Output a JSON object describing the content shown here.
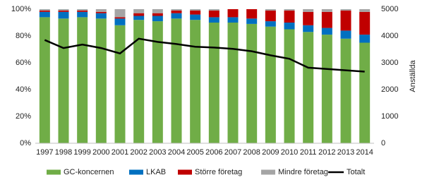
{
  "chart_data": {
    "type": "stacked-bar-line",
    "categories": [
      "1997",
      "1998",
      "1999",
      "2000",
      "2001",
      "2002",
      "2003",
      "2004",
      "2005",
      "2006",
      "2007",
      "2008",
      "2009",
      "2010",
      "2011",
      "2012",
      "2013",
      "2014"
    ],
    "series": [
      {
        "name": "GC-koncernen",
        "color": "#70ad47",
        "values": [
          94,
          93,
          94,
          93,
          88,
          92,
          91,
          93,
          92,
          90,
          90,
          89,
          87,
          85,
          83,
          81,
          78,
          75
        ]
      },
      {
        "name": "LKAB",
        "color": "#0070c0",
        "values": [
          4,
          5,
          4,
          4,
          5,
          3,
          4,
          4,
          4,
          4,
          4,
          4,
          4,
          5,
          5,
          5,
          6,
          6
        ]
      },
      {
        "name": "Större företag",
        "color": "#c00000",
        "values": [
          1,
          1,
          1,
          1,
          1,
          2,
          2,
          2,
          3,
          5,
          6,
          7,
          8,
          9,
          10,
          12,
          15,
          17
        ]
      },
      {
        "name": "Mindre företag",
        "color": "#a5a5a5",
        "values": [
          1,
          1,
          1,
          2,
          6,
          3,
          3,
          1,
          1,
          1,
          0,
          0,
          1,
          1,
          2,
          2,
          1,
          2
        ]
      },
      {
        "name": "Totalt",
        "color": "#000000",
        "axis": "y2",
        "values": [
          3850,
          3550,
          3680,
          3550,
          3350,
          3900,
          3780,
          3700,
          3600,
          3570,
          3520,
          3430,
          3280,
          3150,
          2820,
          2770,
          2720,
          2670
        ]
      }
    ],
    "ylim": [
      0,
      100
    ],
    "yticks": [
      {
        "value": 0,
        "label": "0%"
      },
      {
        "value": 20,
        "label": "20%"
      },
      {
        "value": 40,
        "label": "40%"
      },
      {
        "value": 60,
        "label": "60%"
      },
      {
        "value": 80,
        "label": "80%"
      },
      {
        "value": 100,
        "label": "100%"
      }
    ],
    "y2lim": [
      0,
      5000
    ],
    "y2ticks": [
      0,
      1000,
      2000,
      3000,
      4000,
      5000
    ],
    "y2label": "Anställda",
    "grid": false,
    "legend": "bottom"
  }
}
